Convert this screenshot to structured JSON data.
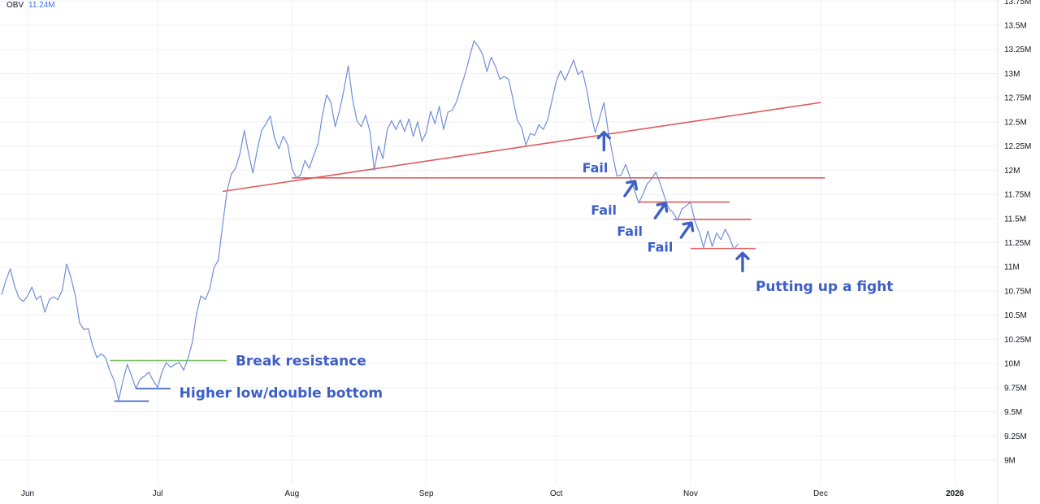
{
  "chart_data": {
    "type": "line",
    "indicator": {
      "name": "OBV",
      "value": "11.24M"
    },
    "ylim": [
      8.9,
      13.78
    ],
    "y_ticks": [
      "13.75M",
      "13.5M",
      "13.25M",
      "13M",
      "12.75M",
      "12.5M",
      "12.25M",
      "12M",
      "11.75M",
      "11.5M",
      "11.25M",
      "11M",
      "10.75M",
      "10.5M",
      "10.25M",
      "10M",
      "9.75M",
      "9.5M",
      "9.25M",
      "9M"
    ],
    "y_tick_values": [
      13.75,
      13.5,
      13.25,
      13,
      12.75,
      12.5,
      12.25,
      12,
      11.75,
      11.5,
      11.25,
      11,
      10.75,
      10.5,
      10.25,
      10,
      9.75,
      9.5,
      9.25,
      9
    ],
    "x_ticks": [
      {
        "label": "Jun",
        "day": 0,
        "bold": false
      },
      {
        "label": "Jul",
        "day": 30,
        "bold": false
      },
      {
        "label": "Aug",
        "day": 61,
        "bold": false
      },
      {
        "label": "Sep",
        "day": 92,
        "bold": false
      },
      {
        "label": "Oct",
        "day": 122,
        "bold": false
      },
      {
        "label": "Nov",
        "day": 153,
        "bold": false
      },
      {
        "label": "Dec",
        "day": 183,
        "bold": false
      },
      {
        "label": "2026",
        "day": 214,
        "bold": true
      }
    ],
    "series": [
      {
        "color": "#6f8fd8",
        "points": [
          [
            -6,
            10.71
          ],
          [
            -5,
            10.86
          ],
          [
            -4,
            10.98
          ],
          [
            -3,
            10.8
          ],
          [
            -2,
            10.68
          ],
          [
            -1,
            10.64
          ],
          [
            0,
            10.7
          ],
          [
            1,
            10.79
          ],
          [
            2,
            10.66
          ],
          [
            3,
            10.7
          ],
          [
            4,
            10.53
          ],
          [
            5,
            10.66
          ],
          [
            6,
            10.69
          ],
          [
            7,
            10.66
          ],
          [
            8,
            10.76
          ],
          [
            9,
            11.03
          ],
          [
            10,
            10.89
          ],
          [
            11,
            10.7
          ],
          [
            12,
            10.42
          ],
          [
            13,
            10.35
          ],
          [
            14,
            10.36
          ],
          [
            15,
            10.18
          ],
          [
            16,
            10.06
          ],
          [
            17,
            10.1
          ],
          [
            18,
            10.06
          ],
          [
            19,
            9.92
          ],
          [
            20,
            9.82
          ],
          [
            21,
            9.62
          ],
          [
            22,
            9.82
          ],
          [
            23,
            9.99
          ],
          [
            24,
            9.87
          ],
          [
            25,
            9.74
          ],
          [
            26,
            9.84
          ],
          [
            27,
            9.87
          ],
          [
            28,
            9.91
          ],
          [
            29,
            9.82
          ],
          [
            30,
            9.75
          ],
          [
            31,
            9.91
          ],
          [
            32,
            10.01
          ],
          [
            33,
            9.96
          ],
          [
            34,
            9.99
          ],
          [
            35,
            10.01
          ],
          [
            36,
            9.93
          ],
          [
            37,
            10.05
          ],
          [
            38,
            10.22
          ],
          [
            39,
            10.52
          ],
          [
            40,
            10.7
          ],
          [
            41,
            10.66
          ],
          [
            42,
            10.77
          ],
          [
            43,
            10.99
          ],
          [
            44,
            11.07
          ],
          [
            45,
            11.43
          ],
          [
            46,
            11.78
          ],
          [
            47,
            11.96
          ],
          [
            48,
            12.02
          ],
          [
            49,
            12.17
          ],
          [
            50,
            12.41
          ],
          [
            51,
            12.17
          ],
          [
            52,
            11.97
          ],
          [
            53,
            12.21
          ],
          [
            54,
            12.41
          ],
          [
            55,
            12.48
          ],
          [
            56,
            12.56
          ],
          [
            57,
            12.33
          ],
          [
            58,
            12.22
          ],
          [
            59,
            12.35
          ],
          [
            60,
            12.27
          ],
          [
            61,
            12.02
          ],
          [
            62,
            11.92
          ],
          [
            63,
            11.95
          ],
          [
            64,
            12.1
          ],
          [
            65,
            12.02
          ],
          [
            66,
            12.15
          ],
          [
            67,
            12.27
          ],
          [
            68,
            12.56
          ],
          [
            69,
            12.78
          ],
          [
            70,
            12.7
          ],
          [
            71,
            12.45
          ],
          [
            72,
            12.62
          ],
          [
            73,
            12.83
          ],
          [
            74,
            13.08
          ],
          [
            75,
            12.73
          ],
          [
            76,
            12.51
          ],
          [
            77,
            12.45
          ],
          [
            78,
            12.57
          ],
          [
            79,
            12.4
          ],
          [
            80,
            12.0
          ],
          [
            81,
            12.25
          ],
          [
            82,
            12.12
          ],
          [
            83,
            12.42
          ],
          [
            84,
            12.51
          ],
          [
            85,
            12.42
          ],
          [
            86,
            12.52
          ],
          [
            87,
            12.4
          ],
          [
            88,
            12.53
          ],
          [
            89,
            12.35
          ],
          [
            90,
            12.5
          ],
          [
            91,
            12.3
          ],
          [
            92,
            12.39
          ],
          [
            93,
            12.61
          ],
          [
            94,
            12.48
          ],
          [
            95,
            12.66
          ],
          [
            96,
            12.42
          ],
          [
            97,
            12.6
          ],
          [
            98,
            12.62
          ],
          [
            99,
            12.71
          ],
          [
            100,
            12.86
          ],
          [
            101,
            13.0
          ],
          [
            102,
            13.17
          ],
          [
            103,
            13.34
          ],
          [
            104,
            13.28
          ],
          [
            105,
            13.2
          ],
          [
            106,
            13.02
          ],
          [
            107,
            13.17
          ],
          [
            108,
            13.07
          ],
          [
            109,
            12.94
          ],
          [
            110,
            12.97
          ],
          [
            111,
            12.94
          ],
          [
            112,
            12.74
          ],
          [
            113,
            12.52
          ],
          [
            114,
            12.44
          ],
          [
            115,
            12.26
          ],
          [
            116,
            12.38
          ],
          [
            117,
            12.36
          ],
          [
            118,
            12.47
          ],
          [
            119,
            12.42
          ],
          [
            120,
            12.52
          ],
          [
            121,
            12.72
          ],
          [
            122,
            12.92
          ],
          [
            123,
            13.03
          ],
          [
            124,
            12.93
          ],
          [
            125,
            13.03
          ],
          [
            126,
            13.14
          ],
          [
            127,
            12.99
          ],
          [
            128,
            13.03
          ],
          [
            129,
            12.84
          ],
          [
            130,
            12.58
          ],
          [
            131,
            12.39
          ],
          [
            132,
            12.54
          ],
          [
            133,
            12.7
          ],
          [
            134,
            12.4
          ],
          [
            135,
            12.16
          ],
          [
            136,
            11.94
          ],
          [
            137,
            11.95
          ],
          [
            138,
            12.06
          ],
          [
            139,
            11.93
          ],
          [
            140,
            11.8
          ],
          [
            141,
            11.66
          ],
          [
            142,
            11.75
          ],
          [
            143,
            11.86
          ],
          [
            144,
            11.91
          ],
          [
            145,
            11.98
          ],
          [
            146,
            11.86
          ],
          [
            147,
            11.72
          ],
          [
            148,
            11.6
          ],
          [
            149,
            11.56
          ],
          [
            150,
            11.48
          ],
          [
            151,
            11.6
          ],
          [
            152,
            11.63
          ],
          [
            153,
            11.67
          ],
          [
            154,
            11.47
          ],
          [
            155,
            11.36
          ],
          [
            156,
            11.2
          ],
          [
            157,
            11.37
          ],
          [
            158,
            11.21
          ],
          [
            159,
            11.35
          ],
          [
            160,
            11.28
          ],
          [
            161,
            11.39
          ],
          [
            162,
            11.3
          ],
          [
            163,
            11.18
          ],
          [
            164,
            11.24
          ]
        ]
      }
    ],
    "trend_lines": [
      {
        "color": "#e05a5a",
        "points": [
          [
            45,
            11.78
          ],
          [
            183,
            12.7
          ]
        ]
      },
      {
        "color": "#e05a5a",
        "points": [
          [
            61,
            11.92
          ],
          [
            184,
            11.92
          ]
        ]
      },
      {
        "color": "#e05a5a",
        "points": [
          [
            141,
            11.67
          ],
          [
            162,
            11.67
          ]
        ]
      },
      {
        "color": "#e05a5a",
        "points": [
          [
            149,
            11.49
          ],
          [
            167,
            11.49
          ]
        ]
      },
      {
        "color": "#e05a5a",
        "points": [
          [
            153,
            11.19
          ],
          [
            168,
            11.19
          ]
        ]
      },
      {
        "color": "#7cc46a",
        "points": [
          [
            19,
            10.03
          ],
          [
            46,
            10.03
          ]
        ]
      },
      {
        "color": "#3d5fc7",
        "points": [
          [
            20,
            9.61
          ],
          [
            28,
            9.61
          ]
        ]
      },
      {
        "color": "#3d5fc7",
        "points": [
          [
            25,
            9.74
          ],
          [
            33,
            9.74
          ]
        ]
      }
    ],
    "annotations": [
      {
        "text": "Break resistance",
        "day": 48,
        "value": 10.03,
        "kind": "text"
      },
      {
        "text": "Higher low/double bottom",
        "day": 35,
        "value": 9.7,
        "kind": "text"
      },
      {
        "text": "Putting up a fight",
        "day": 168,
        "value": 10.8,
        "kind": "text"
      },
      {
        "text": "Fail",
        "day": 128,
        "value": 12.03,
        "kind": "fail"
      },
      {
        "text": "Fail",
        "day": 130,
        "value": 11.59,
        "kind": "fail"
      },
      {
        "text": "Fail",
        "day": 136,
        "value": 11.37,
        "kind": "fail"
      },
      {
        "text": "Fail",
        "day": 143,
        "value": 11.21,
        "kind": "fail"
      }
    ],
    "arrows": [
      {
        "day": 133,
        "value": 12.3,
        "dir": "up"
      },
      {
        "day": 139,
        "value": 11.81,
        "dir": "up-right"
      },
      {
        "day": 146,
        "value": 11.58,
        "dir": "up-right"
      },
      {
        "day": 152,
        "value": 11.38,
        "dir": "up-right"
      },
      {
        "day": 165,
        "value": 11.05,
        "dir": "up"
      }
    ]
  }
}
